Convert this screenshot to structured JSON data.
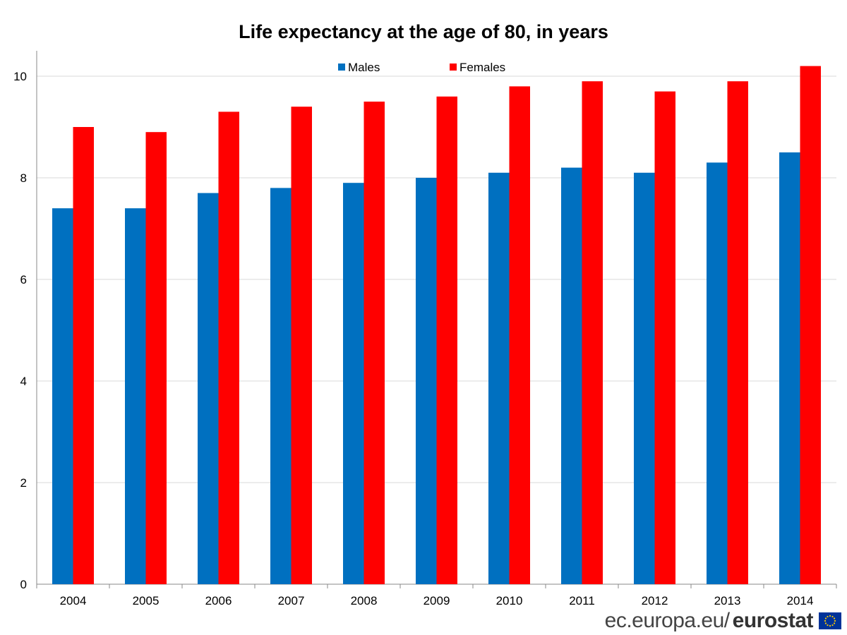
{
  "chart_data": {
    "type": "bar",
    "title": "Life expectancy at the age of 80, in years",
    "xlabel": "",
    "ylabel": "",
    "categories": [
      "2004",
      "2005",
      "2006",
      "2007",
      "2008",
      "2009",
      "2010",
      "2011",
      "2012",
      "2013",
      "2014"
    ],
    "series": [
      {
        "name": "Males",
        "color": "#0070C0",
        "values": [
          7.4,
          7.4,
          7.7,
          7.8,
          7.9,
          8.0,
          8.1,
          8.2,
          8.1,
          8.3,
          8.5
        ]
      },
      {
        "name": "Females",
        "color": "#FF0000",
        "values": [
          9.0,
          8.9,
          9.3,
          9.4,
          9.5,
          9.6,
          9.8,
          9.9,
          9.7,
          9.9,
          10.2
        ]
      }
    ],
    "ylim": [
      0,
      10.5
    ],
    "yticks": [
      0,
      2,
      4,
      6,
      8,
      10
    ],
    "grid": true,
    "legend": "top-center"
  },
  "footer": {
    "domain": "ec.europa.eu/",
    "brand": "eurostat",
    "logo_icon": "eu-flag-icon"
  }
}
